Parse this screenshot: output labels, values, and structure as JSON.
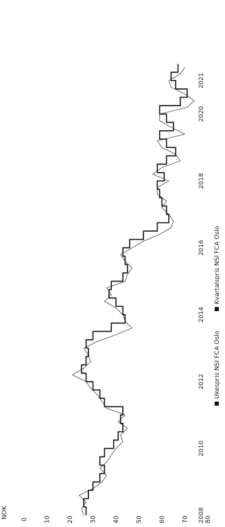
{
  "chart_data": {
    "type": "line",
    "title": "",
    "ylabel": "NOK",
    "ylim": [
      0,
      85
    ],
    "xlim": [
      2008,
      2021.8
    ],
    "y_ticks": [
      "0",
      "10",
      "20",
      "30",
      "40",
      "50",
      "60",
      "70",
      "80"
    ],
    "x_ticks": [
      "2008",
      "2010",
      "2012",
      "2014",
      "2016",
      "2018",
      "2020",
      "2021"
    ],
    "grid": false,
    "legend_position": "bottom",
    "rotation": "90° counter-clockwise (y-axis at bottom, time running upward)",
    "series": [
      {
        "name": "Ukespris NSI FCA Oslo",
        "color": "#555555",
        "style": "weekly, jagged",
        "x": [
          2008.0,
          2008.2,
          2008.4,
          2008.6,
          2008.8,
          2009.0,
          2009.2,
          2009.4,
          2009.6,
          2009.8,
          2010.0,
          2010.2,
          2010.4,
          2010.6,
          2010.8,
          2011.0,
          2011.2,
          2011.4,
          2011.6,
          2011.8,
          2012.0,
          2012.2,
          2012.4,
          2012.6,
          2012.8,
          2013.0,
          2013.2,
          2013.4,
          2013.6,
          2013.8,
          2014.0,
          2014.2,
          2014.4,
          2014.6,
          2014.8,
          2015.0,
          2015.2,
          2015.4,
          2015.6,
          2015.8,
          2016.0,
          2016.2,
          2016.4,
          2016.6,
          2016.8,
          2017.0,
          2017.2,
          2017.4,
          2017.6,
          2017.8,
          2018.0,
          2018.2,
          2018.4,
          2018.6,
          2018.8,
          2019.0,
          2019.2,
          2019.4,
          2019.6,
          2019.8,
          2020.0,
          2020.2,
          2020.4,
          2020.6,
          2020.8,
          2021.0,
          2021.2,
          2021.4
        ],
        "values": [
          26,
          25,
          27,
          24,
          30,
          34,
          36,
          33,
          36,
          38,
          40,
          43,
          42,
          45,
          41,
          44,
          36,
          34,
          32,
          29,
          27,
          21,
          26,
          29,
          28,
          26,
          32,
          40,
          47,
          44,
          43,
          40,
          35,
          38,
          36,
          44,
          45,
          47,
          44,
          42,
          47,
          52,
          59,
          64,
          65,
          63,
          60,
          62,
          58,
          58,
          63,
          56,
          60,
          68,
          66,
          60,
          58,
          70,
          64,
          59,
          59,
          71,
          74,
          70,
          64,
          63,
          68,
          70
        ]
      },
      {
        "name": "Kvartalspris NSI FCA Oslo",
        "color": "#111111",
        "style": "quarterly, step",
        "x": [
          2008.0,
          2008.25,
          2008.5,
          2008.75,
          2009.0,
          2009.25,
          2009.5,
          2009.75,
          2010.0,
          2010.25,
          2010.5,
          2010.75,
          2011.0,
          2011.25,
          2011.5,
          2011.75,
          2012.0,
          2012.25,
          2012.5,
          2012.75,
          2013.0,
          2013.25,
          2013.5,
          2013.75,
          2014.0,
          2014.25,
          2014.5,
          2014.75,
          2015.0,
          2015.25,
          2015.5,
          2015.75,
          2016.0,
          2016.25,
          2016.5,
          2016.75,
          2017.0,
          2017.25,
          2017.5,
          2017.75,
          2018.0,
          2018.25,
          2018.5,
          2018.75,
          2019.0,
          2019.25,
          2019.5,
          2019.75,
          2020.0,
          2020.25,
          2020.5,
          2020.75,
          2021.0,
          2021.25
        ],
        "values": [
          27,
          26,
          28,
          30,
          33,
          35,
          33,
          35,
          39,
          41,
          43,
          42,
          43,
          35,
          33,
          30,
          27,
          25,
          27,
          28,
          27,
          30,
          38,
          44,
          43,
          40,
          37,
          38,
          43,
          45,
          44,
          43,
          46,
          52,
          58,
          63,
          62,
          60,
          59,
          58,
          61,
          58,
          62,
          66,
          62,
          59,
          65,
          62,
          59,
          68,
          71,
          66,
          64,
          67
        ]
      }
    ]
  }
}
